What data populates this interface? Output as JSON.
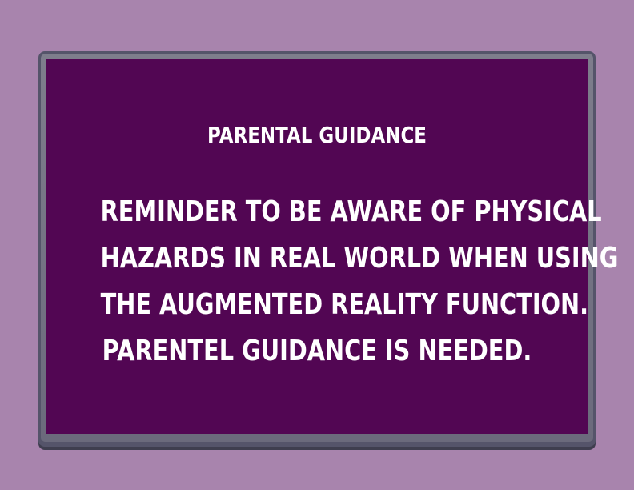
{
  "notice": {
    "title": "PARENTAL GUIDANCE",
    "lines": [
      "REMINDER TO BE AWARE OF PHYSICAL",
      "HAZARDS IN REAL WORLD WHEN USING",
      "THE AUGMENTED REALITY FUNCTION.",
      "PARENTEL GUIDANCE IS NEEDED."
    ]
  },
  "colors": {
    "background": "#a884ad",
    "panel": "#520653",
    "frame": "#6b6a7c",
    "text": "#ffffff"
  }
}
